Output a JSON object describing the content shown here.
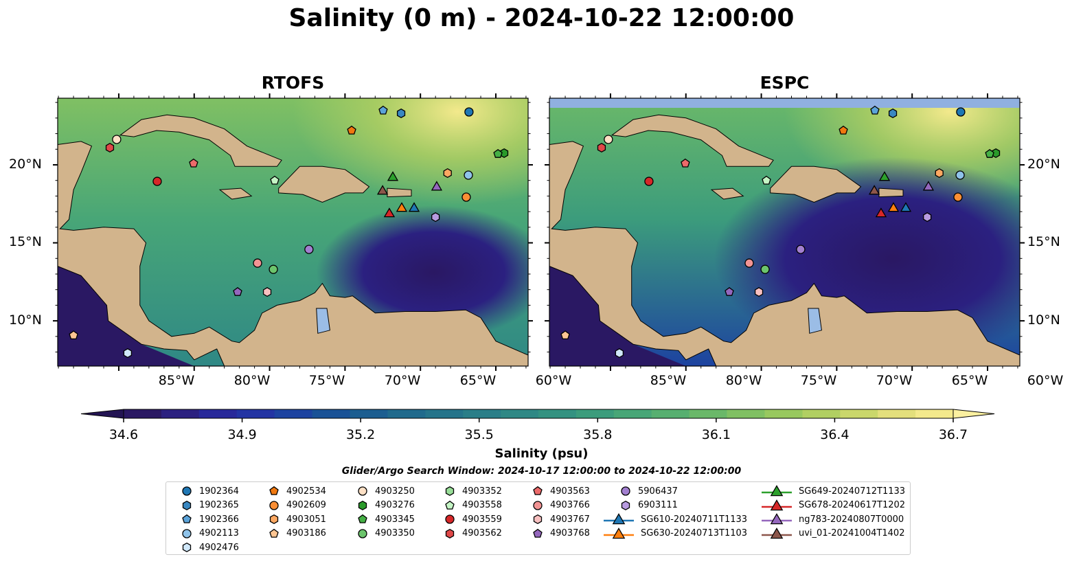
{
  "title": "Salinity (0 m) - 2024-10-22 12:00:00",
  "panels": [
    {
      "title": "RTOFS",
      "model": "rtofs"
    },
    {
      "title": "ESPC",
      "model": "espc"
    }
  ],
  "axes": {
    "lon_ticks": [
      {
        "value": -85,
        "label": "85°W"
      },
      {
        "value": -80,
        "label": "80°W"
      },
      {
        "value": -75,
        "label": "75°W"
      },
      {
        "value": -70,
        "label": "70°W"
      },
      {
        "value": -65,
        "label": "65°W"
      },
      {
        "value": -60,
        "label": "60°W"
      }
    ],
    "lat_ticks": [
      {
        "value": 20,
        "label": "20°N"
      },
      {
        "value": 15,
        "label": "15°N"
      },
      {
        "value": 10,
        "label": "10°N"
      }
    ],
    "lon_range": [
      -89.05,
      -57.86
    ],
    "lat_range": [
      7.1,
      24.27
    ]
  },
  "colorbar": {
    "label": "Salinity (psu)",
    "range": [
      34.6,
      36.7
    ],
    "ticks": [
      "34.6",
      "34.9",
      "35.2",
      "35.5",
      "35.8",
      "36.1",
      "36.4",
      "36.7"
    ],
    "colors": [
      "#2a1863",
      "#2b2080",
      "#28299a",
      "#2334a3",
      "#1d43a0",
      "#1a5296",
      "#1c5e90",
      "#206a8c",
      "#25748a",
      "#2a7e88",
      "#2f8885",
      "#349281",
      "#3c9c7c",
      "#48a677",
      "#57af70",
      "#6ab869",
      "#80c063",
      "#98c85f",
      "#b1cf62",
      "#cad76b",
      "#e3df7c",
      "#f3e98c"
    ],
    "extend_low": "#231453",
    "extend_high": "#fbf0a0"
  },
  "search_window": "Glider/Argo Search Window: 2024-10-17 12:00:00 to 2024-10-22 12:00:00",
  "colors": {
    "land": "#d2b48c",
    "lake": "#9bbde6",
    "nodata": "#90b0e0"
  },
  "legend": [
    {
      "id": "1902364",
      "marker": "circle",
      "color": "#1f77b4",
      "lon": -61.78,
      "lat": 23.39
    },
    {
      "id": "1902365",
      "marker": "hexagon",
      "color": "#3a88c2",
      "lon": -66.28,
      "lat": 23.3
    },
    {
      "id": "1902366",
      "marker": "pentagon",
      "color": "#5ba3d9",
      "lon": -67.47,
      "lat": 23.48
    },
    {
      "id": "4902113",
      "marker": "circle",
      "color": "#8fc3ea",
      "lon": -61.82,
      "lat": 19.34
    },
    {
      "id": "4902476",
      "marker": "hexagon",
      "color": "#d0e8fa",
      "lon": -84.41,
      "lat": 7.93
    },
    {
      "id": "4902534",
      "marker": "pentagon",
      "color": "#f0780f",
      "lon": -69.56,
      "lat": 22.2
    },
    {
      "id": "4902609",
      "marker": "circle",
      "color": "#fb8f35",
      "lon": -61.96,
      "lat": 17.93
    },
    {
      "id": "4903051",
      "marker": "hexagon",
      "color": "#fca862",
      "lon": -63.2,
      "lat": 19.47
    },
    {
      "id": "4903186",
      "marker": "pentagon",
      "color": "#fdc592",
      "lon": -88.0,
      "lat": 9.07
    },
    {
      "id": "4903250",
      "marker": "circle",
      "color": "#fde0c5",
      "lon": -85.14,
      "lat": 21.63
    },
    {
      "id": "4903276",
      "marker": "hexagon",
      "color": "#2a9a2a",
      "lon": -59.45,
      "lat": 20.75
    },
    {
      "id": "4903345",
      "marker": "pentagon",
      "color": "#45b045",
      "lon": -59.86,
      "lat": 20.7
    },
    {
      "id": "4903350",
      "marker": "circle",
      "color": "#6cc46c",
      "lon": -74.75,
      "lat": 13.3
    },
    {
      "id": "4903352",
      "marker": "hexagon",
      "color": "#98dd98",
      "lon": null,
      "lat": null
    },
    {
      "id": "4903558",
      "marker": "pentagon",
      "color": "#c5f5c5",
      "lon": -74.66,
      "lat": 18.99
    },
    {
      "id": "4903559",
      "marker": "circle",
      "color": "#d62728",
      "lon": -82.45,
      "lat": 18.94
    },
    {
      "id": "4903562",
      "marker": "hexagon",
      "color": "#e04848",
      "lon": -85.59,
      "lat": 21.1
    },
    {
      "id": "4903563",
      "marker": "pentagon",
      "color": "#ec6a6a",
      "lon": -80.04,
      "lat": 20.09
    },
    {
      "id": "4903766",
      "marker": "circle",
      "color": "#f29494",
      "lon": -75.8,
      "lat": 13.7
    },
    {
      "id": "4903767",
      "marker": "hexagon",
      "color": "#f8c0c0",
      "lon": -75.16,
      "lat": 11.85
    },
    {
      "id": "4903768",
      "marker": "pentagon",
      "color": "#9467bd",
      "lon": -77.12,
      "lat": 11.85
    },
    {
      "id": "5906437",
      "marker": "circle",
      "color": "#a27fd0",
      "lon": -72.39,
      "lat": 14.58
    },
    {
      "id": "6903111",
      "marker": "hexagon",
      "color": "#b89be0",
      "lon": -64.0,
      "lat": 16.65
    },
    {
      "id": "SG610-20240711T1133",
      "marker": "triangle",
      "color": "#1f77b4",
      "lon": -65.42,
      "lat": 17.27
    },
    {
      "id": "SG630-20240713T1103",
      "marker": "triangle",
      "color": "#ff7f0e",
      "lon": -66.24,
      "lat": 17.27
    },
    {
      "id": "SG649-20240712T1133",
      "marker": "triangle",
      "color": "#2ca02c",
      "lon": -66.83,
      "lat": 19.25
    },
    {
      "id": "SG678-20240617T1202",
      "marker": "triangle",
      "color": "#d62728",
      "lon": -67.06,
      "lat": 16.92
    },
    {
      "id": "ng783-20240807T0000",
      "marker": "triangle",
      "color": "#9467bd",
      "lon": -63.92,
      "lat": 18.63
    },
    {
      "id": "uvi_01-20241004T1402",
      "marker": "triangle",
      "color": "#8c564b",
      "lon": -67.51,
      "lat": 18.37
    }
  ]
}
